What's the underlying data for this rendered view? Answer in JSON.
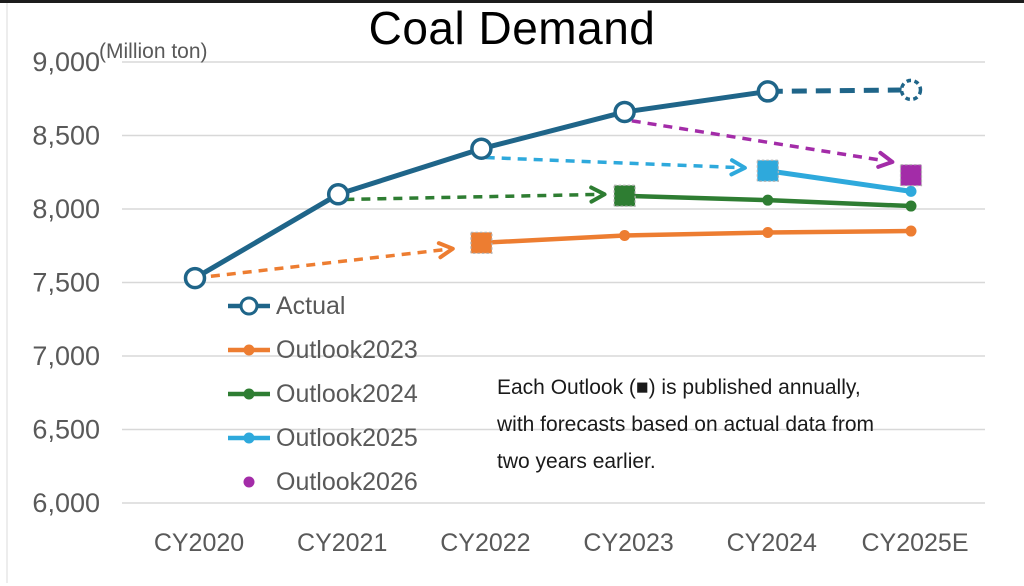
{
  "title": "Coal Demand",
  "unit_label": "(Million ton)",
  "annotation": {
    "lines": [
      "Each Outlook (■) is published annually,",
      "with forecasts based on actual data from",
      "two years earlier."
    ]
  },
  "colors": {
    "actual": "#1F6589",
    "outlook2023": "#ED7D31",
    "outlook2024": "#2E7D32",
    "outlook2025": "#2EA9DC",
    "outlook2026": "#A32CA8",
    "gridline": "#D8D8D8",
    "axis_text": "#595959"
  },
  "chart_data": {
    "type": "line",
    "title": "Coal Demand",
    "ylabel": "(Million ton)",
    "categories": [
      "CY2020",
      "CY2021",
      "CY2022",
      "CY2023",
      "CY2024",
      "CY2025E"
    ],
    "ylim": [
      6000,
      9000
    ],
    "grid": true,
    "legend_position": "inside-left-middle",
    "yticks": [
      {
        "value": 9000,
        "label": "9,000"
      },
      {
        "value": 8500,
        "label": "8,500"
      },
      {
        "value": 8000,
        "label": "8,000"
      },
      {
        "value": 7500,
        "label": "7,500"
      },
      {
        "value": 7000,
        "label": "7,000"
      },
      {
        "value": 6500,
        "label": "6,500"
      },
      {
        "value": 6000,
        "label": "6,000"
      }
    ],
    "series": [
      {
        "name": "Actual",
        "color": "#1F6589",
        "start_index": 0,
        "values": [
          7530,
          8100,
          8410,
          8660,
          8800,
          8810
        ],
        "solid_until_index": 4,
        "line_width": 5,
        "markers": [
          "open-circle",
          "open-circle",
          "open-circle",
          "open-circle",
          "open-circle",
          "open-circle-dashed"
        ],
        "legend_marker": "line-open-circle"
      },
      {
        "name": "Outlook2023",
        "color": "#ED7D31",
        "start_index": 2,
        "values": [
          7770,
          7820,
          7840,
          7850
        ],
        "line_width": 4.5,
        "markers": [
          "square",
          "dot",
          "dot",
          "dot"
        ],
        "legend_marker": "line-dot"
      },
      {
        "name": "Outlook2024",
        "color": "#2E7D32",
        "start_index": 3,
        "values": [
          8090,
          8060,
          8020
        ],
        "line_width": 4.5,
        "markers": [
          "square",
          "dot",
          "dot"
        ],
        "legend_marker": "line-dot"
      },
      {
        "name": "Outlook2025",
        "color": "#2EA9DC",
        "start_index": 4,
        "values": [
          8260,
          8120
        ],
        "line_width": 5,
        "markers": [
          "square",
          "dot"
        ],
        "legend_marker": "line-dot"
      },
      {
        "name": "Outlook2026",
        "color": "#A32CA8",
        "start_index": 5,
        "values": [
          8230
        ],
        "line_width": 0,
        "markers": [
          "square"
        ],
        "legend_marker": "dot"
      }
    ],
    "arrows": [
      {
        "name": "outlook2023-arrow",
        "color": "#ED7D31",
        "from": {
          "index": 0,
          "value": 7530
        },
        "to": {
          "index": 1.8,
          "value": 7730
        }
      },
      {
        "name": "outlook2024-arrow",
        "color": "#2E7D32",
        "from": {
          "index": 1.05,
          "value": 8065
        },
        "to": {
          "index": 2.86,
          "value": 8100
        }
      },
      {
        "name": "outlook2025-arrow",
        "color": "#2EA9DC",
        "from": {
          "index": 2.03,
          "value": 8350
        },
        "to": {
          "index": 3.84,
          "value": 8280
        }
      },
      {
        "name": "outlook2026-arrow",
        "color": "#A32CA8",
        "from": {
          "index": 3.05,
          "value": 8600
        },
        "to": {
          "index": 4.87,
          "value": 8320
        }
      }
    ]
  }
}
